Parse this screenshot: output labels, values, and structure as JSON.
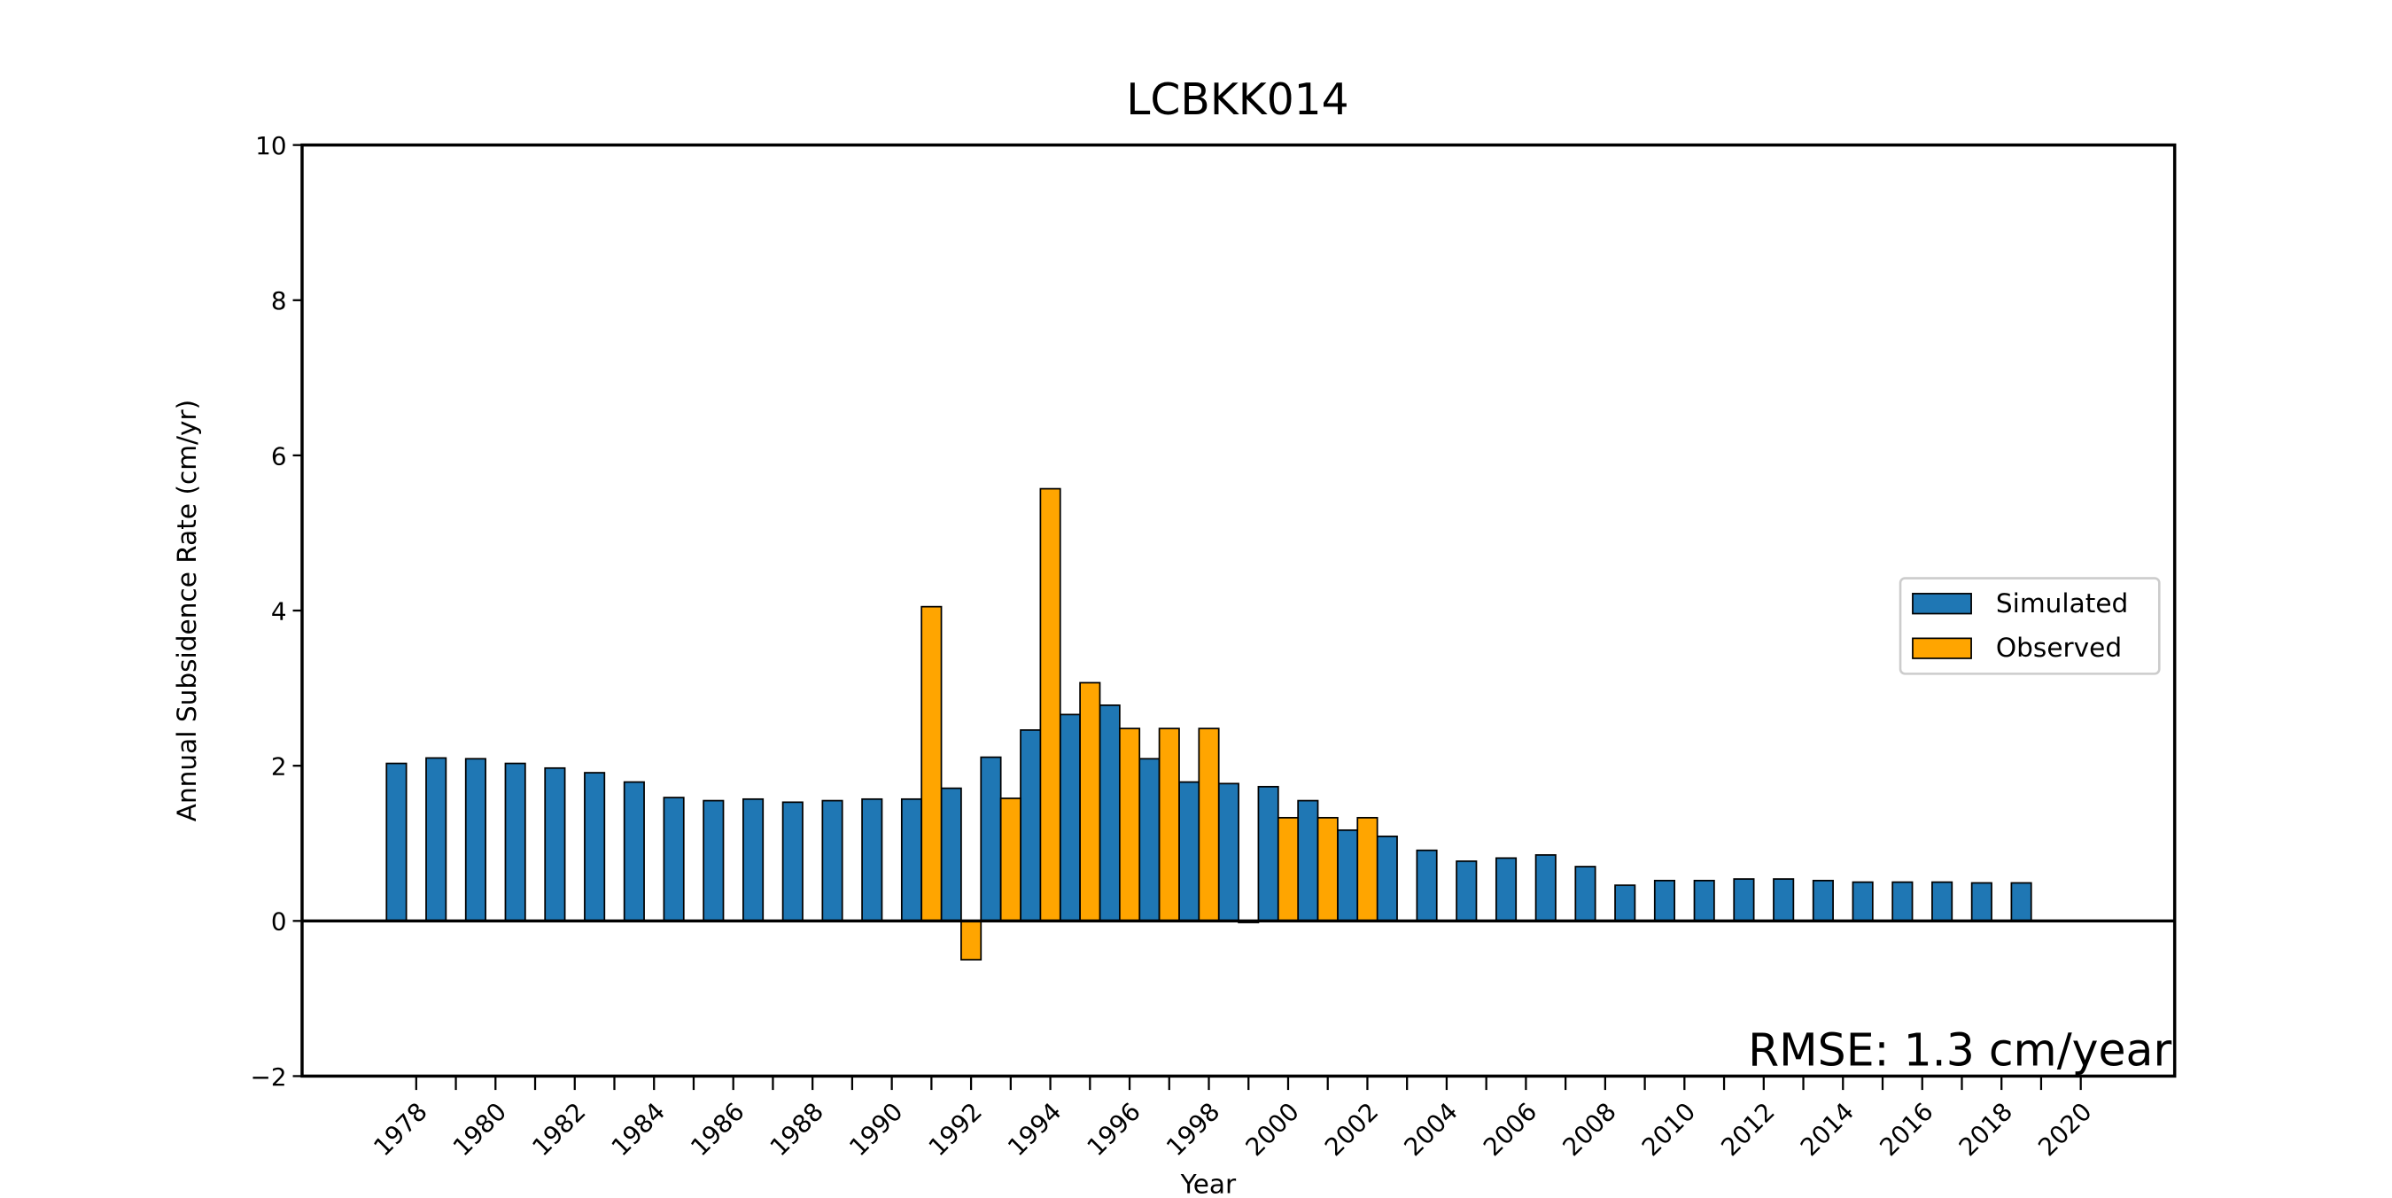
{
  "chart_data": {
    "type": "bar",
    "title": "LCBKK014",
    "ylabel": "Annual Subsidence Rate (cm/yr)",
    "xlabel": "Year",
    "annotation": "RMSE: 1.3 cm/year",
    "x": [
      1977,
      1978,
      1979,
      1980,
      1981,
      1982,
      1983,
      1984,
      1985,
      1986,
      1987,
      1988,
      1989,
      1990,
      1991,
      1992,
      1993,
      1994,
      1995,
      1996,
      1997,
      1998,
      1999,
      2000,
      2001,
      2002,
      2003,
      2004,
      2005,
      2006,
      2007,
      2008,
      2009,
      2010,
      2011,
      2012,
      2013,
      2014,
      2015,
      2016,
      2017,
      2018
    ],
    "series": [
      {
        "name": "Simulated",
        "color": "#1f77b4",
        "values": [
          2.03,
          2.1,
          2.09,
          2.03,
          1.97,
          1.91,
          1.79,
          1.59,
          1.55,
          1.57,
          1.53,
          1.55,
          1.57,
          1.57,
          1.71,
          2.11,
          2.46,
          2.66,
          2.78,
          2.09,
          1.79,
          1.77,
          1.73,
          1.55,
          1.17,
          1.09,
          0.91,
          0.77,
          0.81,
          0.85,
          0.7,
          0.46,
          0.52,
          0.52,
          0.54,
          0.54,
          0.52,
          0.5,
          0.5,
          0.5,
          0.49,
          0.49
        ]
      },
      {
        "name": "Observed",
        "color": "#ffa500",
        "values": [
          null,
          null,
          null,
          null,
          null,
          null,
          null,
          null,
          null,
          null,
          null,
          null,
          null,
          null,
          4.05,
          -0.5,
          1.58,
          5.57,
          3.07,
          2.48,
          2.48,
          2.48,
          -0.02,
          1.33,
          1.33,
          1.33,
          null,
          null,
          null,
          null,
          null,
          null,
          null,
          null,
          null,
          null,
          null,
          null,
          null,
          null,
          null,
          null
        ]
      }
    ],
    "xlim": [
      1975.12,
      2022.37
    ],
    "xticks": [
      1978,
      1980,
      1982,
      1984,
      1986,
      1988,
      1990,
      1992,
      1994,
      1996,
      1998,
      2000,
      2002,
      2004,
      2006,
      2008,
      2010,
      2012,
      2014,
      2016,
      2018,
      2020
    ],
    "xminorticks": [
      1979,
      1981,
      1983,
      1985,
      1987,
      1989,
      1991,
      1993,
      1995,
      1997,
      1999,
      2001,
      2003,
      2005,
      2007,
      2009,
      2011,
      2013,
      2015,
      2017,
      2019
    ],
    "ylim": [
      -2,
      10
    ],
    "yticks": [
      {
        "value": -2,
        "label": "−2"
      },
      0,
      2,
      4,
      6,
      8,
      10
    ],
    "legend": "center right"
  }
}
